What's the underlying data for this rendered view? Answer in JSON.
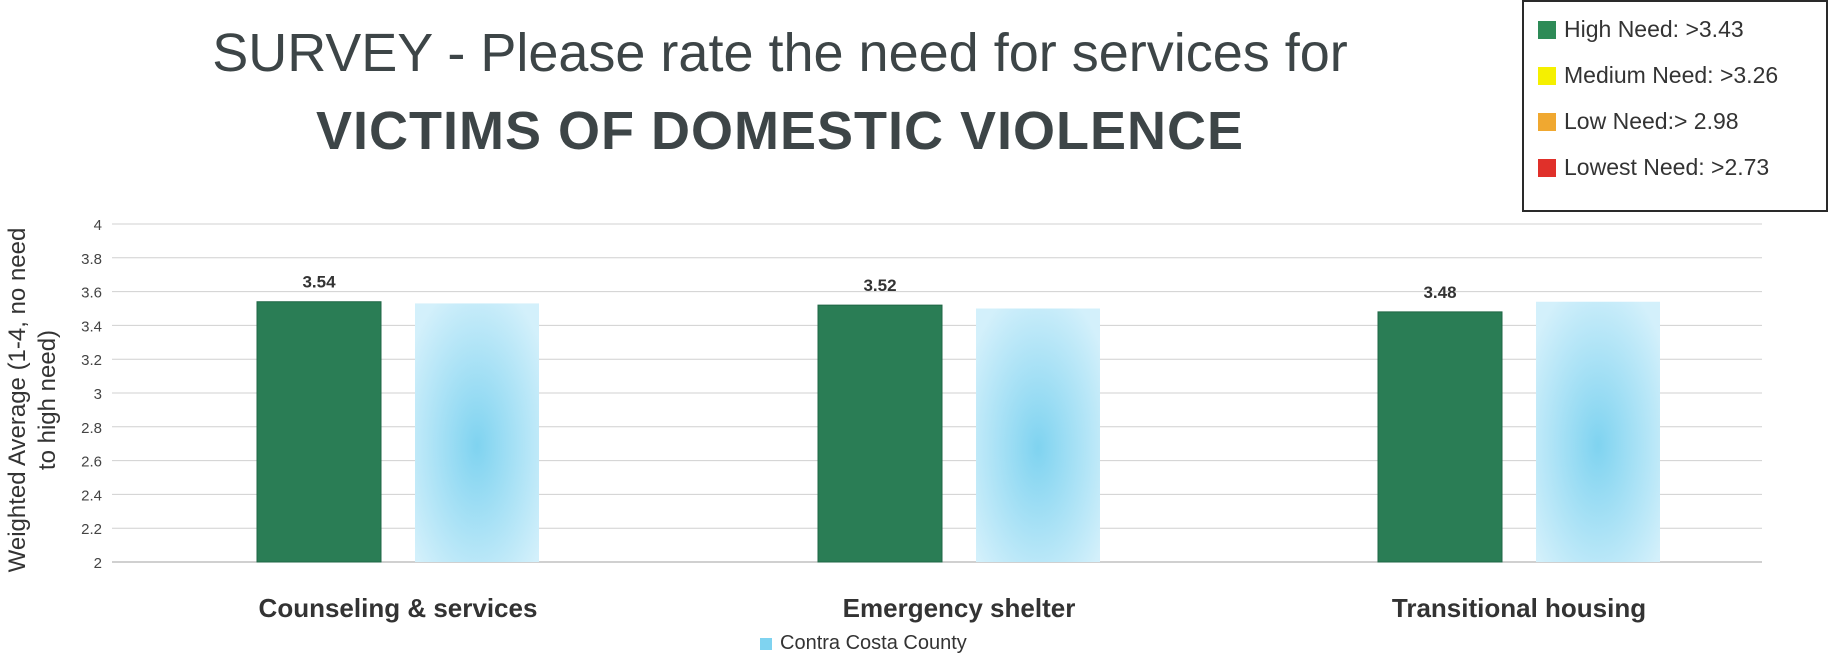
{
  "title_line1": "SURVEY - Please rate the need for services for",
  "title_line2": "VICTIMS OF DOMESTIC VIOLENCE",
  "need_legend": [
    {
      "label": "High Need: >3.43",
      "color": "#2e8b57"
    },
    {
      "label": "Medium Need: >3.26",
      "color": "#f5f000"
    },
    {
      "label": "Low Need:> 2.98",
      "color": "#f0a830"
    },
    {
      "label": "Lowest Need: >2.73",
      "color": "#e0302a"
    }
  ],
  "chart_data": {
    "type": "bar",
    "categories": [
      "Counseling & services",
      "Emergency shelter",
      "Transitional housing"
    ],
    "series": [
      {
        "values": [
          3.54,
          3.52,
          3.48
        ],
        "data_labels": [
          "3.54",
          "3.52",
          "3.48"
        ],
        "color": "#2a7d55"
      },
      {
        "name": "Contra Costa County",
        "values": [
          3.53,
          3.5,
          3.54
        ],
        "color": "#8fd8f2"
      }
    ],
    "ylabel": "Weighted Average (1-4, no need to high need)",
    "ylim": [
      2,
      4
    ],
    "yticks": [
      "2",
      "2.2",
      "2.4",
      "2.6",
      "2.8",
      "3",
      "3.2",
      "3.4",
      "3.6",
      "3.8",
      "4"
    ],
    "grid": true,
    "legend_position": "bottom"
  }
}
